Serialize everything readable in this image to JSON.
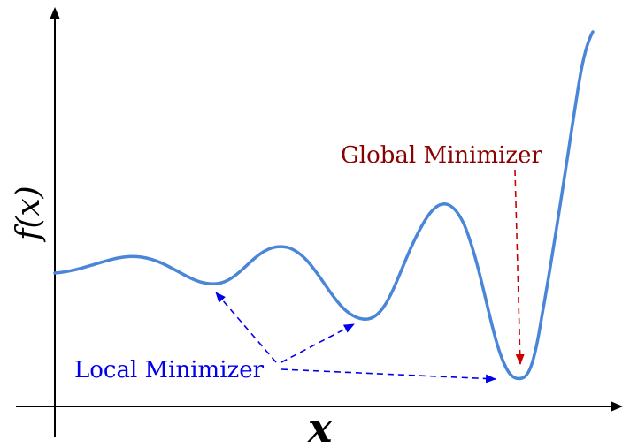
{
  "diagram": {
    "axes": {
      "x_label": "x",
      "y_label": "f(x)",
      "y_label_variable": "x"
    },
    "labels": {
      "global_minimizer": "Global Minimizer",
      "local_minimizer": "Local Minimizer"
    },
    "colors": {
      "curve": "#4a86d8",
      "axis": "#000000",
      "global_label": "#8b0000",
      "global_arrow": "#cc0000",
      "local_label": "#0000ee",
      "local_arrow": "#0000ee"
    }
  }
}
